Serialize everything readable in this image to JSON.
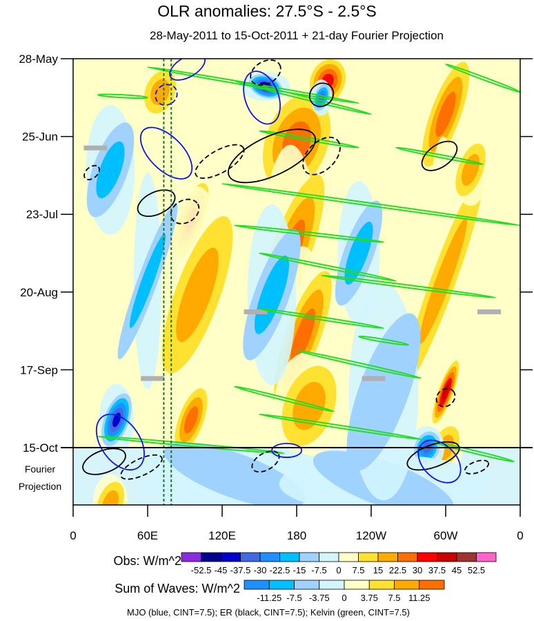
{
  "chart_data": {
    "type": "heatmap",
    "title": "OLR anomalies: 27.5°S - 2.5°S",
    "subtitle": "28-May-2011 to 15-Oct-2011 + 21-day Fourier Projection",
    "xlabel": "",
    "ylabel": "",
    "x_ticks": [
      {
        "lon": 0,
        "label": "0"
      },
      {
        "lon": 60,
        "label": "60E"
      },
      {
        "lon": 120,
        "label": "120E"
      },
      {
        "lon": 180,
        "label": "180"
      },
      {
        "lon": 240,
        "label": "120W"
      },
      {
        "lon": 300,
        "label": "60W"
      },
      {
        "lon": 360,
        "label": "0"
      }
    ],
    "y_ticks": [
      {
        "day": 0,
        "label": "28-May"
      },
      {
        "day": 28,
        "label": "25-Jun"
      },
      {
        "day": 56,
        "label": "23-Jul"
      },
      {
        "day": 84,
        "label": "20-Aug"
      },
      {
        "day": 112,
        "label": "17-Sep"
      },
      {
        "day": 140,
        "label": "15-Oct"
      }
    ],
    "xlim": [
      0,
      360
    ],
    "ylim_days": [
      0,
      161
    ],
    "projection_start_day": 140,
    "projection_label": [
      "Fourier",
      "Projection"
    ],
    "reference_lines_lon": [
      73,
      79
    ],
    "obs_colorbar": {
      "label": "Obs: W/m^2",
      "levels": [
        "-52.5",
        "-45",
        "-37.5",
        "-30",
        "-22.5",
        "-15",
        "-7.5",
        "0",
        "7.5",
        "15",
        "22.5",
        "30",
        "37.5",
        "45",
        "52.5"
      ],
      "colors": [
        "#8a2be2",
        "#00008b",
        "#0000cd",
        "#4169e1",
        "#1e90ff",
        "#00bfff",
        "#a0d2ff",
        "#d2f5ff",
        "#ffffc8",
        "#ffe132",
        "#ffaa00",
        "#ff6e00",
        "#ff0000",
        "#c80000",
        "#a03232",
        "#ff64c8"
      ]
    },
    "waves_colorbar": {
      "label": "Sum of Waves: W/m^2",
      "levels": [
        "-11.25",
        "-7.5",
        "-3.75",
        "0",
        "3.75",
        "7.5",
        "11.25"
      ],
      "colors": [
        "#1e90ff",
        "#00bfff",
        "#a0d2ff",
        "#d2f5ff",
        "#ffffc8",
        "#ffe132",
        "#ffaa00",
        "#ff6e00"
      ]
    },
    "footnote": "MJO (blue, CINT=7.5); ER (black, CINT=7.5); Kelvin (green, CINT=7.5)",
    "anomaly_features": [
      {
        "lon": 185,
        "day": 45,
        "value": 40,
        "dlon": 14,
        "dday": 10
      },
      {
        "lon": 180,
        "day": 30,
        "value": 25,
        "dlon": 25,
        "dday": 18
      },
      {
        "lon": 175,
        "day": 70,
        "value": 22.5,
        "dlon": 16,
        "dday": 30
      },
      {
        "lon": 185,
        "day": 100,
        "value": 22.5,
        "dlon": 14,
        "dday": 25
      },
      {
        "lon": 190,
        "day": 125,
        "value": 15,
        "dlon": 20,
        "dday": 15
      },
      {
        "lon": 95,
        "day": 58,
        "value": 30,
        "dlon": 10,
        "dday": 14
      },
      {
        "lon": 100,
        "day": 85,
        "value": 15,
        "dlon": 18,
        "dday": 30
      },
      {
        "lon": 95,
        "day": 130,
        "value": 22.5,
        "dlon": 10,
        "dday": 12
      },
      {
        "lon": 300,
        "day": 20,
        "value": 22.5,
        "dlon": 12,
        "dday": 20
      },
      {
        "lon": 298,
        "day": 80,
        "value": 15,
        "dlon": 10,
        "dday": 40
      },
      {
        "lon": 300,
        "day": 120,
        "value": 37.5,
        "dlon": 6,
        "dday": 12
      },
      {
        "lon": 300,
        "day": 140,
        "value": 15,
        "dlon": 10,
        "dday": 8
      },
      {
        "lon": 205,
        "day": 8,
        "value": 30,
        "dlon": 14,
        "dday": 8
      },
      {
        "lon": 30,
        "day": 45,
        "value": -30,
        "dlon": 8,
        "dday": 6
      },
      {
        "lon": 30,
        "day": 40,
        "value": -15,
        "dlon": 14,
        "dday": 18
      },
      {
        "lon": 155,
        "day": 10,
        "value": -45,
        "dlon": 14,
        "dday": 4
      },
      {
        "lon": 200,
        "day": 14,
        "value": -30,
        "dlon": 6,
        "dday": 5
      },
      {
        "lon": 35,
        "day": 130,
        "value": -37.5,
        "dlon": 10,
        "dday": 10
      },
      {
        "lon": 160,
        "day": 85,
        "value": -15,
        "dlon": 14,
        "dday": 25
      },
      {
        "lon": 285,
        "day": 140,
        "value": -30,
        "dlon": 10,
        "dday": 6
      },
      {
        "lon": 30,
        "day": 160,
        "value": 15,
        "dlon": 10,
        "dday": 8
      },
      {
        "lon": 130,
        "day": 150,
        "value": -7.5,
        "dlon": 60,
        "dday": 8
      },
      {
        "lon": 250,
        "day": 153,
        "value": -7.5,
        "dlon": 60,
        "dday": 8
      },
      {
        "lon": 60,
        "day": 80,
        "value": -15,
        "dlon": 8,
        "dday": 30
      },
      {
        "lon": 230,
        "day": 70,
        "value": -15,
        "dlon": 12,
        "dday": 20
      },
      {
        "lon": 250,
        "day": 120,
        "value": -7.5,
        "dlon": 20,
        "dday": 30
      },
      {
        "lon": 70,
        "day": 12,
        "value": 15,
        "dlon": 12,
        "dday": 8
      },
      {
        "lon": 320,
        "day": 40,
        "value": 15,
        "dlon": 10,
        "dday": 10
      }
    ],
    "missing_boxes": [
      {
        "lon": 18,
        "day": 32
      },
      {
        "lon": 147,
        "day": 91
      },
      {
        "lon": 242,
        "day": 115
      },
      {
        "lon": 335,
        "day": 91
      },
      {
        "lon": 64,
        "day": 115
      }
    ],
    "mjo_contours": [
      {
        "lon": 92,
        "day": 3,
        "rlon": 8,
        "rday": 7,
        "angle": 60,
        "dashed": false
      },
      {
        "lon": 152,
        "day": 14,
        "rlon": 22,
        "rday": 6,
        "angle": 70,
        "dashed": false
      },
      {
        "lon": 75,
        "day": 34,
        "rlon": 26,
        "rday": 6,
        "angle": 45,
        "dashed": false
      },
      {
        "lon": 38,
        "day": 138,
        "rlon": 25,
        "rday": 7,
        "angle": 55,
        "dashed": false
      },
      {
        "lon": 295,
        "day": 145,
        "rlon": 20,
        "rday": 6,
        "angle": 45,
        "dashed": false
      },
      {
        "lon": 172,
        "day": 141,
        "rlon": 12,
        "rday": 2.5,
        "angle": 0,
        "dashed": false
      },
      {
        "lon": 75,
        "day": 13,
        "rlon": 8,
        "rday": 4,
        "angle": 60,
        "dashed": true
      }
    ],
    "er_contours": [
      {
        "lon": 160,
        "day": 35,
        "rlon": 38,
        "rday": 7,
        "angle": -25,
        "dashed": false
      },
      {
        "lon": 155,
        "day": 5,
        "rlon": 13,
        "rday": 4,
        "angle": -30,
        "dashed": true
      },
      {
        "lon": 200,
        "day": 35,
        "rlon": 18,
        "rday": 5,
        "angle": -45,
        "dashed": true
      },
      {
        "lon": 67,
        "day": 52,
        "rlon": 16,
        "rday": 4,
        "angle": -25,
        "dashed": false
      },
      {
        "lon": 90,
        "day": 55,
        "rlon": 12,
        "rday": 4,
        "angle": -30,
        "dashed": true
      },
      {
        "lon": 118,
        "day": 37,
        "rlon": 22,
        "rday": 4,
        "angle": -30,
        "dashed": true
      },
      {
        "lon": 200,
        "day": 13,
        "rlon": 10,
        "rday": 4,
        "angle": -40,
        "dashed": false
      },
      {
        "lon": 295,
        "day": 35,
        "rlon": 16,
        "rday": 4,
        "angle": -35,
        "dashed": false
      },
      {
        "lon": 25,
        "day": 145,
        "rlon": 18,
        "rday": 4,
        "angle": -20,
        "dashed": false
      },
      {
        "lon": 290,
        "day": 143,
        "rlon": 22,
        "rday": 4,
        "angle": -20,
        "dashed": false
      },
      {
        "lon": 300,
        "day": 122,
        "rlon": 8,
        "rday": 3,
        "angle": -40,
        "dashed": true
      },
      {
        "lon": 55,
        "day": 147,
        "rlon": 18,
        "rday": 3,
        "angle": -25,
        "dashed": true
      },
      {
        "lon": 155,
        "day": 145,
        "rlon": 12,
        "rday": 3,
        "angle": -30,
        "dashed": true
      },
      {
        "lon": 15,
        "day": 41,
        "rlon": 7,
        "rday": 2,
        "angle": -40,
        "dashed": true
      },
      {
        "lon": 325,
        "day": 147,
        "rlon": 10,
        "rday": 2,
        "angle": -20,
        "dashed": true
      }
    ],
    "kelvin_contours": [
      {
        "lon0": 60,
        "day0": 3,
        "lon1": 230,
        "day1": 16
      },
      {
        "lon0": 130,
        "day0": 8,
        "lon1": 240,
        "day1": 20
      },
      {
        "lon0": 300,
        "day0": 2,
        "lon1": 360,
        "day1": 12
      },
      {
        "lon0": 150,
        "day0": 26,
        "lon1": 230,
        "day1": 32
      },
      {
        "lon0": 260,
        "day0": 32,
        "lon1": 330,
        "day1": 38
      },
      {
        "lon0": 120,
        "day0": 45,
        "lon1": 360,
        "day1": 60
      },
      {
        "lon0": 130,
        "day0": 60,
        "lon1": 250,
        "day1": 66
      },
      {
        "lon0": 150,
        "day0": 70,
        "lon1": 260,
        "day1": 80
      },
      {
        "lon0": 200,
        "day0": 78,
        "lon1": 340,
        "day1": 86
      },
      {
        "lon0": 150,
        "day0": 90,
        "lon1": 250,
        "day1": 97
      },
      {
        "lon0": 180,
        "day0": 105,
        "lon1": 280,
        "day1": 115
      },
      {
        "lon0": 130,
        "day0": 118,
        "lon1": 210,
        "day1": 127
      },
      {
        "lon0": 150,
        "day0": 128,
        "lon1": 280,
        "day1": 137
      },
      {
        "lon0": 20,
        "day0": 136,
        "lon1": 170,
        "day1": 142
      },
      {
        "lon0": 290,
        "day0": 138,
        "lon1": 355,
        "day1": 145
      },
      {
        "lon0": 20,
        "day0": 13,
        "lon1": 60,
        "day1": 14
      },
      {
        "lon0": 230,
        "day0": 100,
        "lon1": 270,
        "day1": 103
      }
    ]
  }
}
